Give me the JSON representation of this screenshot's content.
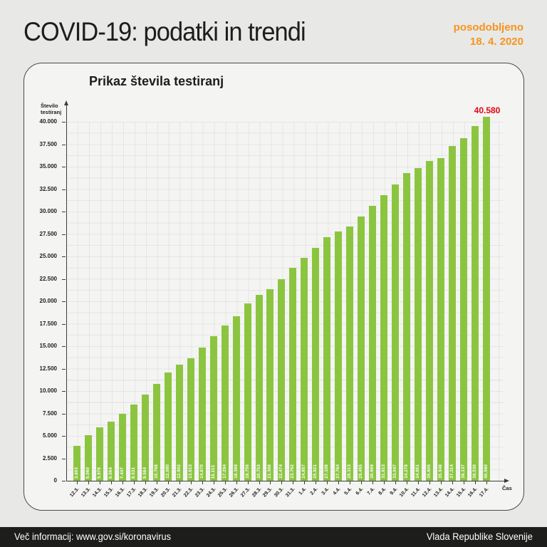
{
  "header": {
    "title": "COVID-19: podatki in trendi",
    "updated_label": "posodobljeno",
    "updated_date": "18. 4. 2020"
  },
  "chart_data": {
    "type": "bar",
    "title": "Prikaz števila testiranj",
    "xlabel": "Čas",
    "ylabel": "Število testiranj",
    "ylabel_lines": [
      "Število",
      "testiranj"
    ],
    "ylim": [
      0,
      41500
    ],
    "ytick_step": 2500,
    "yticks": [
      "0",
      "2.500",
      "5.000",
      "7.500",
      "10.000",
      "12.500",
      "15.000",
      "17.500",
      "20.000",
      "22.500",
      "25.000",
      "27.500",
      "30.000",
      "32.500",
      "35.000",
      "37.500",
      "40.000"
    ],
    "grid": "dotted",
    "legend": "none",
    "bar_color": "#8bc540",
    "categories": [
      "12.3.",
      "13.3.",
      "14.3.",
      "15.3.",
      "16.3.",
      "17.3.",
      "18.3.",
      "19.3.",
      "20.3.",
      "21.3.",
      "22.3.",
      "23.3.",
      "24.3.",
      "25.3.",
      "26.3.",
      "27.3.",
      "28.3.",
      "29.3.",
      "30.3.",
      "31.3.",
      "1.4.",
      "2.4.",
      "3.4.",
      "4.4.",
      "5.4.",
      "6.4.",
      "7.4.",
      "8.4.",
      "9.4.",
      "10.4.",
      "11.4.",
      "12.4.",
      "13.4.",
      "14.4.",
      "15.4.",
      "16.4.",
      "17.4."
    ],
    "values": [
      3863,
      5060,
      5976,
      6564,
      7447,
      8531,
      9584,
      10768,
      12090,
      12902,
      13613,
      14870,
      16113,
      17294,
      18369,
      19756,
      20753,
      21368,
      22474,
      23762,
      24857,
      25921,
      27108,
      27764,
      28313,
      29455,
      30669,
      31813,
      33047,
      34279,
      34851,
      35605,
      35948,
      37314,
      38137,
      39530,
      40580
    ],
    "bar_labels": [
      "3.863",
      "5.060",
      "5.976",
      "6.564",
      "7.447",
      "8.531",
      "9.584",
      "10.768",
      "12.090",
      "12.902",
      "13.613",
      "14.870",
      "16.113",
      "17.294",
      "18.369",
      "19.756",
      "20.753",
      "21.368",
      "22.474",
      "23.762",
      "24.857",
      "25.921",
      "27.108",
      "27.764",
      "28.313",
      "29.455",
      "30.669",
      "31.813",
      "33.047",
      "34.279",
      "34.851",
      "35.605",
      "35.948",
      "37.314",
      "38.137",
      "39.530",
      "40.580"
    ],
    "annotation": {
      "text": "40.580",
      "color": "#e30613",
      "index": 36
    }
  },
  "footer": {
    "info": "Več informacij: www.gov.si/koronavirus",
    "source": "Vlada Republike Slovenije"
  },
  "colors": {
    "accent_orange": "#f7941d",
    "accent_red": "#e30613",
    "bar_green": "#8bc540",
    "background": "#e8e8e7",
    "card": "#f4f4f3",
    "footer_bg": "#1d1d1b",
    "text": "#1d1d1b"
  }
}
